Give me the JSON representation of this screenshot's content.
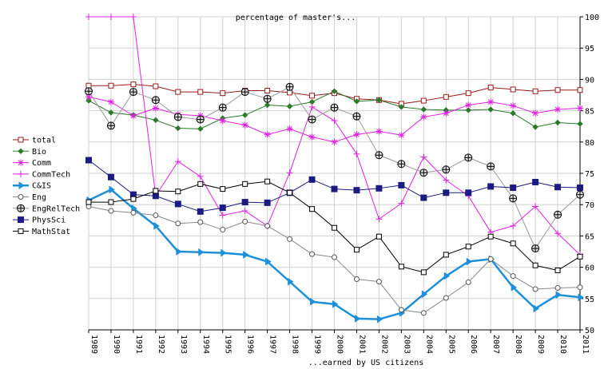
{
  "chart_data": {
    "type": "line",
    "title": "percentage of master's...",
    "xlabel": "...earned by US citizens",
    "ylabel": "",
    "ylim": [
      50,
      100
    ],
    "yticks": [
      50,
      55,
      60,
      65,
      70,
      75,
      80,
      85,
      90,
      95,
      100
    ],
    "grid": true,
    "legend_position": "left",
    "x": [
      "1989",
      "1990",
      "1991",
      "1992",
      "1993",
      "1994",
      "1995",
      "1996",
      "1997",
      "1998",
      "1999",
      "2000",
      "2001",
      "2002",
      "2003",
      "2004",
      "2005",
      "2006",
      "2007",
      "2008",
      "2009",
      "2010",
      "2011"
    ],
    "series": [
      {
        "name": "total",
        "color": "#9b1b1b",
        "marker": "square-open",
        "width": 1,
        "values": [
          89.0,
          89.0,
          89.2,
          88.9,
          88.0,
          88.0,
          87.8,
          88.2,
          88.2,
          87.9,
          87.4,
          87.8,
          86.9,
          86.7,
          86.1,
          86.6,
          87.2,
          87.8,
          88.7,
          88.4,
          88.1,
          88.3,
          88.3
        ]
      },
      {
        "name": "Bio",
        "color": "#2b7a2b",
        "marker": "diamond",
        "width": 1,
        "values": [
          86.6,
          84.7,
          84.3,
          83.5,
          82.2,
          82.1,
          83.8,
          84.3,
          85.9,
          85.7,
          86.4,
          88.1,
          86.5,
          86.7,
          85.6,
          85.2,
          85.1,
          85.1,
          85.2,
          84.6,
          82.4,
          83.1,
          82.9
        ]
      },
      {
        "name": "Comm",
        "color": "#e020e0",
        "marker": "asterisk",
        "width": 1,
        "values": [
          87.2,
          86.4,
          84.2,
          85.4,
          84.4,
          84.2,
          83.4,
          82.7,
          81.2,
          82.1,
          80.8,
          80.0,
          81.2,
          81.7,
          81.1,
          84.0,
          84.6,
          85.9,
          86.4,
          85.8,
          84.6,
          85.2,
          85.4
        ]
      },
      {
        "name": "CommTech",
        "color": "#e020e0",
        "marker": "plus",
        "width": 1,
        "values": [
          100,
          100,
          100,
          71.4,
          76.9,
          74.5,
          68.3,
          69.0,
          66.6,
          75.1,
          85.6,
          83.4,
          78.1,
          67.7,
          70.2,
          77.6,
          73.9,
          71.4,
          65.6,
          66.6,
          69.7,
          65.4,
          62.0
        ]
      },
      {
        "name": "C&IS",
        "color": "#1e90d8",
        "marker": "triangle-right",
        "width": 2.5,
        "values": [
          70.7,
          72.4,
          69.4,
          66.6,
          62.5,
          62.4,
          62.3,
          62.0,
          60.9,
          57.7,
          54.5,
          54.1,
          51.8,
          51.7,
          52.7,
          55.7,
          58.6,
          60.9,
          61.3,
          56.8,
          53.4,
          55.6,
          55.2
        ]
      },
      {
        "name": "Eng",
        "color": "#888888",
        "marker": "circle-open",
        "width": 1,
        "values": [
          69.7,
          69.0,
          68.7,
          68.3,
          67.0,
          67.2,
          66.0,
          67.3,
          66.6,
          64.5,
          62.1,
          61.6,
          58.1,
          57.7,
          53.2,
          52.7,
          55.1,
          57.6,
          61.3,
          58.6,
          56.5,
          56.7,
          56.8
        ]
      },
      {
        "name": "EngRelTech",
        "color": "#999999",
        "marker": "circle-cross",
        "width": 1,
        "values": [
          88.1,
          82.6,
          88.0,
          86.7,
          84.0,
          83.6,
          85.5,
          88.0,
          86.9,
          88.8,
          83.6,
          85.5,
          84.1,
          77.9,
          76.5,
          75.1,
          75.6,
          77.5,
          76.1,
          71.0,
          63.0,
          68.4,
          71.6
        ]
      },
      {
        "name": "PhysSci",
        "color": "#1c1c80",
        "marker": "square-filled",
        "width": 1,
        "values": [
          77.1,
          74.4,
          71.6,
          71.4,
          70.1,
          68.9,
          69.5,
          70.4,
          70.3,
          71.9,
          74.0,
          72.5,
          72.3,
          72.6,
          73.1,
          71.1,
          71.9,
          71.9,
          72.9,
          72.7,
          73.6,
          72.8,
          72.7
        ]
      },
      {
        "name": "MathStat",
        "color": "#000000",
        "marker": "square-open",
        "width": 1,
        "values": [
          70.4,
          70.4,
          70.9,
          72.2,
          72.1,
          73.3,
          72.5,
          73.3,
          73.7,
          71.9,
          69.3,
          66.3,
          62.8,
          64.9,
          60.1,
          59.2,
          62.0,
          63.3,
          64.9,
          63.8,
          60.3,
          59.5,
          61.7
        ]
      }
    ]
  }
}
